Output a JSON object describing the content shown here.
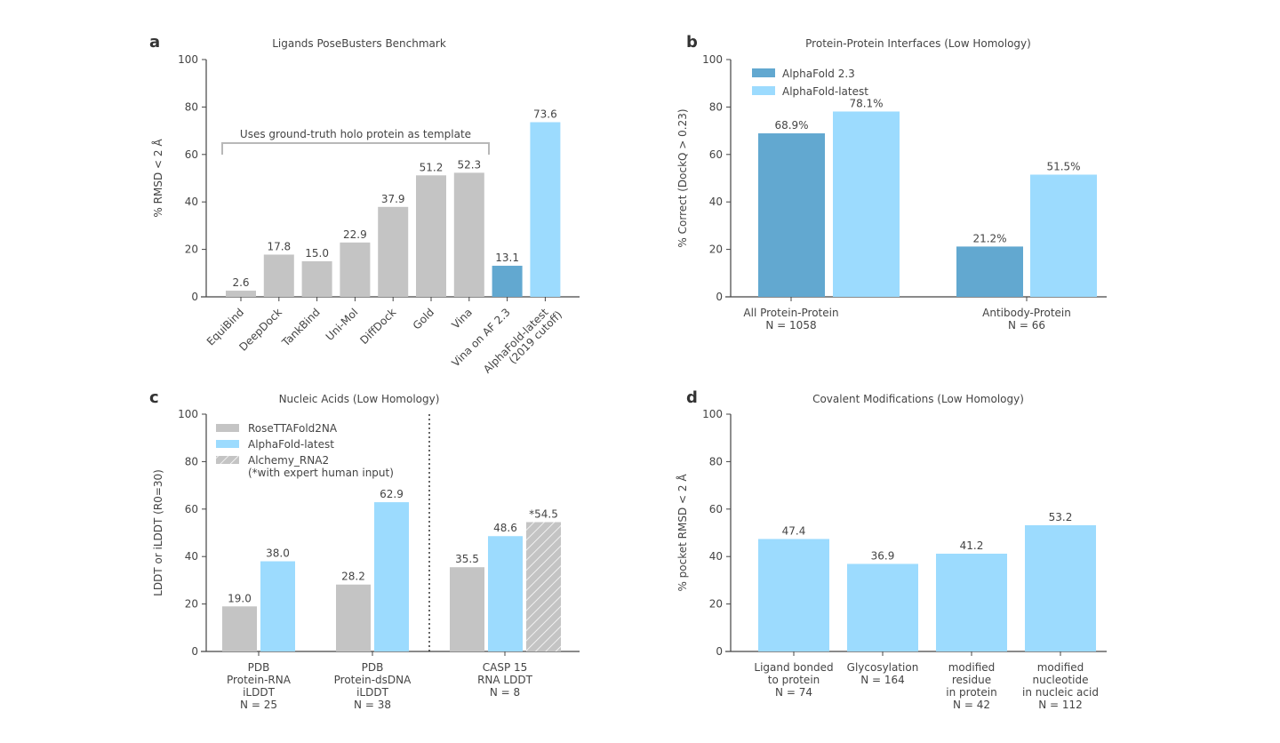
{
  "colors": {
    "gray": "#c4c4c4",
    "dark_blue": "#62a8d0",
    "light_blue": "#9cdbfe",
    "axis": "#444444"
  },
  "chart_data": [
    {
      "panel": "a",
      "type": "bar",
      "title": "Ligands PoseBusters Benchmark",
      "ylabel": "% RMSD < 2 Å",
      "ylim": [
        0,
        100
      ],
      "yticks": [
        0,
        20,
        40,
        60,
        80,
        100
      ],
      "grid": false,
      "annotation": "Uses ground-truth holo protein as template",
      "categories": [
        "EquiBind",
        "DeepDock",
        "TankBind",
        "Uni-Mol",
        "DiffDock",
        "Gold",
        "Vina",
        "Vina on AF 2.3",
        "AlphaFold-latest\n(2019 cutoff)"
      ],
      "values": [
        2.6,
        17.8,
        15.0,
        22.9,
        37.9,
        51.2,
        52.3,
        13.1,
        73.6
      ],
      "value_labels": [
        "2.6",
        "17.8",
        "15.0",
        "22.9",
        "37.9",
        "51.2",
        "52.3",
        "13.1",
        "73.6"
      ],
      "bar_colors": [
        "gray",
        "gray",
        "gray",
        "gray",
        "gray",
        "gray",
        "gray",
        "dark_blue",
        "light_blue"
      ]
    },
    {
      "panel": "b",
      "type": "bar",
      "title": "Protein-Protein Interfaces (Low Homology)",
      "ylabel": "% Correct (DockQ > 0.23)",
      "ylim": [
        0,
        100
      ],
      "yticks": [
        0,
        20,
        40,
        60,
        80,
        100
      ],
      "grid": false,
      "legend_position": "top-left",
      "categories": [
        "All Protein-Protein\nN = 1058",
        "Antibody-Protein\nN = 66"
      ],
      "series": [
        {
          "name": "AlphaFold 2.3",
          "color": "dark_blue",
          "values": [
            68.9,
            21.2
          ],
          "value_labels": [
            "68.9%",
            "21.2%"
          ]
        },
        {
          "name": "AlphaFold-latest",
          "color": "light_blue",
          "values": [
            78.1,
            51.5
          ],
          "value_labels": [
            "78.1%",
            "51.5%"
          ]
        }
      ]
    },
    {
      "panel": "c",
      "type": "bar",
      "title": "Nucleic Acids (Low Homology)",
      "ylabel": "LDDT or iLDDT (R0=30)",
      "ylim": [
        0,
        100
      ],
      "yticks": [
        0,
        20,
        40,
        60,
        80,
        100
      ],
      "grid": false,
      "legend_position": "top-left",
      "categories": [
        "PDB\nProtein-RNA\niLDDT\nN = 25",
        "PDB\nProtein-dsDNA\niLDDT\nN = 38",
        "CASP 15\nRNA LDDT\nN = 8"
      ],
      "series": [
        {
          "name": "RoseTTAFold2NA",
          "color": "gray",
          "values": [
            19.0,
            28.2,
            35.5
          ],
          "value_labels": [
            "19.0",
            "28.2",
            "35.5"
          ]
        },
        {
          "name": "AlphaFold-latest",
          "color": "light_blue",
          "values": [
            38.0,
            62.9,
            48.6
          ],
          "value_labels": [
            "38.0",
            "62.9",
            "48.6"
          ]
        },
        {
          "name": "Alchemy_RNA2\n(*with expert human input)",
          "color": "gray",
          "hatched": true,
          "values": [
            null,
            null,
            54.5
          ],
          "value_labels": [
            null,
            null,
            "*54.5"
          ]
        }
      ]
    },
    {
      "panel": "d",
      "type": "bar",
      "title": "Covalent Modifications (Low Homology)",
      "ylabel": "% pocket RMSD < 2 Å",
      "ylim": [
        0,
        100
      ],
      "yticks": [
        0,
        20,
        40,
        60,
        80,
        100
      ],
      "grid": false,
      "categories": [
        "Ligand bonded\nto protein\nN = 74",
        "Glycosylation\nN = 164",
        "modified\nresidue\nin protein\nN = 42",
        "modified\nnucleotide\nin nucleic acid\nN = 112"
      ],
      "values": [
        47.4,
        36.9,
        41.2,
        53.2
      ],
      "value_labels": [
        "47.4",
        "36.9",
        "41.2",
        "53.2"
      ],
      "bar_colors": [
        "light_blue",
        "light_blue",
        "light_blue",
        "light_blue"
      ]
    }
  ]
}
